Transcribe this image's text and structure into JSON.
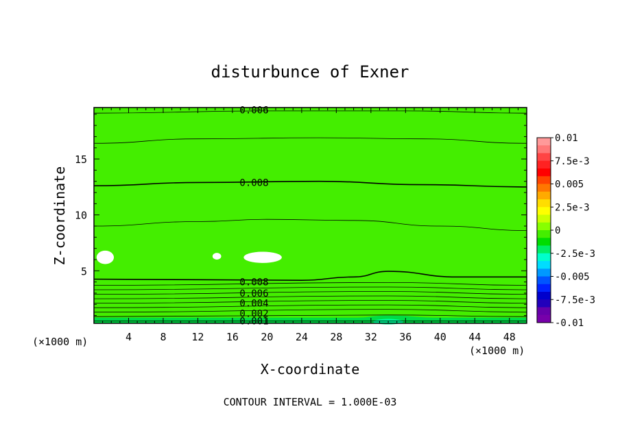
{
  "chart_data": {
    "type": "heatmap",
    "title": "disturbunce of Exner",
    "xlabel": "X-coordinate",
    "ylabel": "Z-coordinate",
    "x_unit_left": "(×1000 m)",
    "x_unit_right": "(×1000 m)",
    "footer": "CONTOUR INTERVAL = 1.000E-03",
    "xlim": [
      0,
      50
    ],
    "ylim": [
      0.3,
      19.6
    ],
    "x_ticks": [
      4,
      8,
      12,
      16,
      20,
      24,
      28,
      32,
      36,
      40,
      44,
      48
    ],
    "y_ticks": [
      5,
      10,
      15
    ],
    "contour_labels": [
      {
        "text": "0.006",
        "x": 18.5,
        "z": 19.4
      },
      {
        "text": "0.008",
        "x": 18.5,
        "z": 12.9
      },
      {
        "text": "0.008",
        "x": 18.5,
        "z": 4.0
      },
      {
        "text": "0.006",
        "x": 18.5,
        "z": 3.0
      },
      {
        "text": "0.004",
        "x": 18.5,
        "z": 2.1
      },
      {
        "text": "0.002",
        "x": 18.5,
        "z": 1.2
      },
      {
        "text": "0.001",
        "x": 18.5,
        "z": 0.5
      }
    ],
    "colorbar": {
      "labels": [
        "0.01",
        "7.5e-3",
        "0.005",
        "2.5e-3",
        "0",
        "-2.5e-3",
        "-0.005",
        "-7.5e-3",
        "-0.01"
      ],
      "colors": [
        "#ff9999",
        "#ff7777",
        "#ff4444",
        "#ff2222",
        "#ff0000",
        "#ff4400",
        "#ff7700",
        "#ffaa00",
        "#ffdd00",
        "#ffff00",
        "#ccff00",
        "#88ff00",
        "#44ee00",
        "#00dd00",
        "#00ee66",
        "#00ffcc",
        "#00ddff",
        "#0099ff",
        "#0055ff",
        "#0022ff",
        "#0000cc",
        "#2200bb",
        "#6600aa",
        "#7700aa"
      ]
    }
  }
}
